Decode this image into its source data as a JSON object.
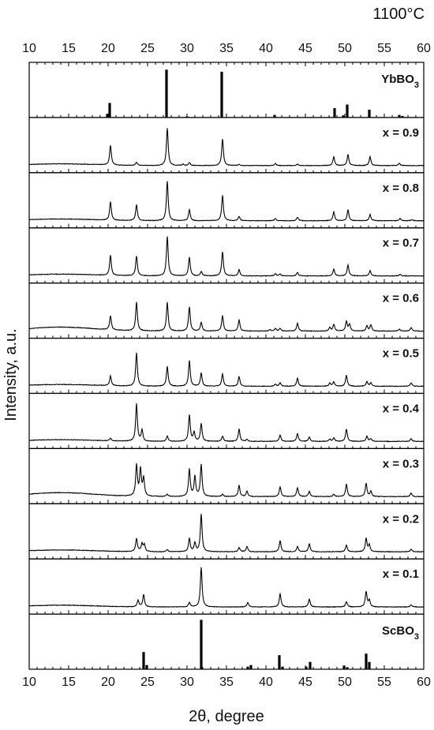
{
  "chart_data": {
    "type": "line",
    "title": "1100°C",
    "xlabel": "2θ, degree",
    "ylabel": "Intensity, a.u.",
    "xlim": [
      10,
      60
    ],
    "xticks": [
      10,
      15,
      20,
      25,
      30,
      35,
      40,
      45,
      50,
      55,
      60
    ],
    "reference_top": {
      "name": "YbBO",
      "subscript": "3",
      "peaks": [
        [
          19.9,
          0.07
        ],
        [
          20.2,
          0.28
        ],
        [
          27.4,
          0.92
        ],
        [
          30.0,
          0.02
        ],
        [
          34.4,
          0.88
        ],
        [
          41.1,
          0.05
        ],
        [
          48.7,
          0.18
        ],
        [
          49.8,
          0.04
        ],
        [
          50.3,
          0.25
        ],
        [
          53.1,
          0.15
        ],
        [
          56.9,
          0.05
        ],
        [
          57.3,
          0.03
        ]
      ]
    },
    "reference_bottom": {
      "name": "ScBO",
      "subscript": "3",
      "peaks": [
        [
          24.5,
          0.33
        ],
        [
          24.9,
          0.08
        ],
        [
          31.8,
          0.95
        ],
        [
          37.7,
          0.05
        ],
        [
          38.1,
          0.08
        ],
        [
          41.7,
          0.27
        ],
        [
          42.1,
          0.05
        ],
        [
          45.1,
          0.05
        ],
        [
          45.6,
          0.14
        ],
        [
          49.9,
          0.07
        ],
        [
          50.3,
          0.04
        ],
        [
          52.7,
          0.3
        ],
        [
          53.1,
          0.14
        ]
      ]
    },
    "series": [
      {
        "label": "x = 0.9",
        "peaks": [
          [
            20.3,
            0.45
          ],
          [
            23.6,
            0.07
          ],
          [
            27.5,
            0.85
          ],
          [
            29.5,
            0.03
          ],
          [
            30.3,
            0.07
          ],
          [
            34.5,
            0.6
          ],
          [
            36.6,
            0.03
          ],
          [
            41.2,
            0.05
          ],
          [
            44.0,
            0.03
          ],
          [
            48.6,
            0.2
          ],
          [
            50.4,
            0.25
          ],
          [
            53.2,
            0.2
          ],
          [
            56.9,
            0.05
          ]
        ]
      },
      {
        "label": "x = 0.8",
        "peaks": [
          [
            20.3,
            0.42
          ],
          [
            23.6,
            0.36
          ],
          [
            27.5,
            0.9
          ],
          [
            30.3,
            0.25
          ],
          [
            34.5,
            0.58
          ],
          [
            36.6,
            0.1
          ],
          [
            41.2,
            0.05
          ],
          [
            44.0,
            0.08
          ],
          [
            48.6,
            0.2
          ],
          [
            50.4,
            0.25
          ],
          [
            53.2,
            0.14
          ],
          [
            57.0,
            0.05
          ],
          [
            58.5,
            0.03
          ]
        ]
      },
      {
        "label": "x = 0.7",
        "peaks": [
          [
            20.3,
            0.45
          ],
          [
            23.6,
            0.45
          ],
          [
            27.5,
            0.9
          ],
          [
            30.3,
            0.42
          ],
          [
            31.8,
            0.1
          ],
          [
            34.5,
            0.55
          ],
          [
            36.6,
            0.14
          ],
          [
            41.2,
            0.05
          ],
          [
            41.8,
            0.04
          ],
          [
            44.0,
            0.08
          ],
          [
            48.6,
            0.15
          ],
          [
            50.4,
            0.25
          ],
          [
            53.2,
            0.12
          ],
          [
            57.0,
            0.04
          ]
        ]
      },
      {
        "label": "x = 0.6",
        "peaks": [
          [
            20.3,
            0.32
          ],
          [
            23.6,
            0.65
          ],
          [
            27.5,
            0.65
          ],
          [
            30.3,
            0.55
          ],
          [
            31.8,
            0.2
          ],
          [
            34.5,
            0.35
          ],
          [
            36.6,
            0.25
          ],
          [
            40.5,
            0.03
          ],
          [
            41.2,
            0.06
          ],
          [
            41.8,
            0.06
          ],
          [
            44.0,
            0.18
          ],
          [
            48.1,
            0.08
          ],
          [
            48.6,
            0.15
          ],
          [
            50.2,
            0.22
          ],
          [
            50.6,
            0.15
          ],
          [
            52.8,
            0.12
          ],
          [
            53.3,
            0.14
          ],
          [
            56.9,
            0.04
          ],
          [
            58.4,
            0.08
          ]
        ]
      },
      {
        "label": "x = 0.5",
        "peaks": [
          [
            20.3,
            0.22
          ],
          [
            23.6,
            0.75
          ],
          [
            27.5,
            0.45
          ],
          [
            30.3,
            0.58
          ],
          [
            31.8,
            0.3
          ],
          [
            34.5,
            0.28
          ],
          [
            36.6,
            0.22
          ],
          [
            41.2,
            0.04
          ],
          [
            41.8,
            0.08
          ],
          [
            44.0,
            0.18
          ],
          [
            48.1,
            0.07
          ],
          [
            48.6,
            0.1
          ],
          [
            50.2,
            0.25
          ],
          [
            52.8,
            0.1
          ],
          [
            53.3,
            0.08
          ],
          [
            58.4,
            0.08
          ]
        ]
      },
      {
        "label": "x = 0.4",
        "peaks": [
          [
            20.3,
            0.06
          ],
          [
            23.6,
            0.85
          ],
          [
            24.3,
            0.25
          ],
          [
            27.5,
            0.12
          ],
          [
            30.3,
            0.6
          ],
          [
            30.9,
            0.2
          ],
          [
            31.8,
            0.4
          ],
          [
            34.5,
            0.12
          ],
          [
            36.6,
            0.28
          ],
          [
            37.6,
            0.05
          ],
          [
            41.8,
            0.15
          ],
          [
            44.0,
            0.18
          ],
          [
            45.5,
            0.1
          ],
          [
            48.1,
            0.05
          ],
          [
            48.6,
            0.08
          ],
          [
            50.2,
            0.28
          ],
          [
            52.8,
            0.12
          ],
          [
            53.3,
            0.06
          ],
          [
            58.4,
            0.06
          ]
        ]
      },
      {
        "label": "x = 0.3",
        "peaks": [
          [
            23.6,
            0.7
          ],
          [
            24.1,
            0.6
          ],
          [
            24.5,
            0.4
          ],
          [
            27.5,
            0.05
          ],
          [
            30.3,
            0.62
          ],
          [
            31.0,
            0.45
          ],
          [
            31.8,
            0.72
          ],
          [
            34.5,
            0.05
          ],
          [
            36.6,
            0.25
          ],
          [
            37.6,
            0.12
          ],
          [
            41.8,
            0.22
          ],
          [
            44.0,
            0.2
          ],
          [
            45.5,
            0.12
          ],
          [
            48.6,
            0.05
          ],
          [
            50.2,
            0.28
          ],
          [
            52.7,
            0.3
          ],
          [
            53.3,
            0.12
          ],
          [
            58.4,
            0.08
          ]
        ]
      },
      {
        "label": "x = 0.2",
        "peaks": [
          [
            23.6,
            0.3
          ],
          [
            24.3,
            0.18
          ],
          [
            24.6,
            0.15
          ],
          [
            27.5,
            0.05
          ],
          [
            30.3,
            0.3
          ],
          [
            31.0,
            0.2
          ],
          [
            31.8,
            0.85
          ],
          [
            36.6,
            0.1
          ],
          [
            37.6,
            0.12
          ],
          [
            41.8,
            0.25
          ],
          [
            44.0,
            0.12
          ],
          [
            45.5,
            0.18
          ],
          [
            50.2,
            0.15
          ],
          [
            52.7,
            0.3
          ],
          [
            53.1,
            0.15
          ],
          [
            58.4,
            0.06
          ]
        ]
      },
      {
        "label": "x = 0.1",
        "peaks": [
          [
            23.8,
            0.15
          ],
          [
            24.5,
            0.28
          ],
          [
            30.3,
            0.1
          ],
          [
            31.8,
            0.9
          ],
          [
            37.7,
            0.1
          ],
          [
            41.8,
            0.3
          ],
          [
            45.5,
            0.18
          ],
          [
            50.2,
            0.12
          ],
          [
            52.7,
            0.35
          ],
          [
            53.1,
            0.15
          ],
          [
            58.4,
            0.05
          ]
        ]
      }
    ]
  }
}
